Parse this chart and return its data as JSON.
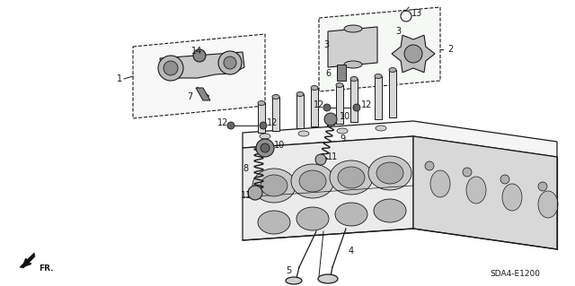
{
  "background_color": "#ffffff",
  "diagram_code": "SDA4-E1200",
  "line_color": "#1a1a1a",
  "text_color": "#1a1a1a",
  "font_size": 7.0,
  "fig_w": 6.4,
  "fig_h": 3.19,
  "dpi": 100
}
